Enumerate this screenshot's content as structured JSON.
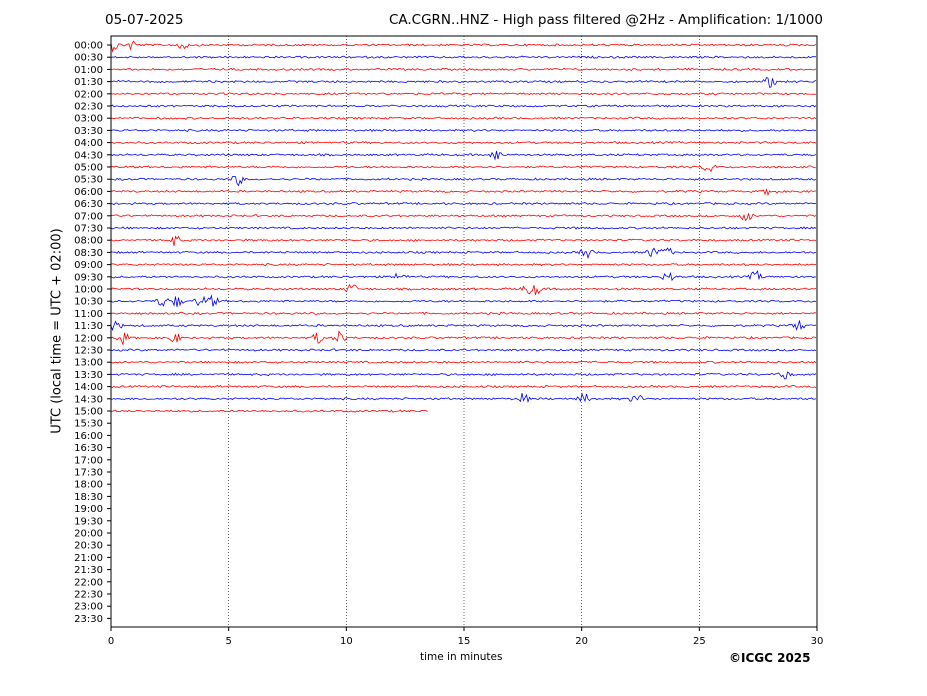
{
  "header": {
    "date": "05-07-2025",
    "title": "CA.CGRN..HNZ - High pass filtered @2Hz - Amplification: 1/1000"
  },
  "footer": {
    "copyright": "©ICGC 2025"
  },
  "chart_data": {
    "type": "line",
    "title": "CA.CGRN..HNZ - High pass filtered @2Hz - Amplification: 1/1000",
    "xlabel": "time in minutes",
    "ylabel": "UTC (local time = UTC + 02:00)",
    "xlim": [
      0,
      30
    ],
    "xticks": [
      0,
      5,
      10,
      15,
      20,
      25,
      30
    ],
    "grid_x": true,
    "row_labels": [
      "00:00",
      "00:30",
      "01:00",
      "01:30",
      "02:00",
      "02:30",
      "03:00",
      "03:30",
      "04:00",
      "04:30",
      "05:00",
      "05:30",
      "06:00",
      "06:30",
      "07:00",
      "07:30",
      "08:00",
      "08:30",
      "09:00",
      "09:30",
      "10:00",
      "10:30",
      "11:00",
      "11:30",
      "12:00",
      "12:30",
      "13:00",
      "13:30",
      "14:00",
      "14:30",
      "15:00",
      "15:30",
      "16:00",
      "16:30",
      "17:00",
      "17:30",
      "18:00",
      "18:30",
      "19:00",
      "19:30",
      "20:00",
      "20:30",
      "21:00",
      "21:30",
      "22:00",
      "22:30",
      "23:00",
      "23:30"
    ],
    "colors": {
      "even_rows": "#ff0000",
      "odd_rows": "#0000ff"
    },
    "last_row_end_minutes": 13.5,
    "trace_rows_recorded": 31,
    "events": [
      {
        "row": "00:00",
        "minute": 0.1
      },
      {
        "row": "00:00",
        "minute": 0.9
      },
      {
        "row": "00:00",
        "minute": 3.0
      },
      {
        "row": "01:30",
        "minute": 28.0
      },
      {
        "row": "04:30",
        "minute": 16.4
      },
      {
        "row": "05:00",
        "minute": 25.4
      },
      {
        "row": "05:30",
        "minute": 5.4
      },
      {
        "row": "06:00",
        "minute": 28.0
      },
      {
        "row": "07:00",
        "minute": 27.0
      },
      {
        "row": "08:00",
        "minute": 2.7
      },
      {
        "row": "08:30",
        "minute": 20.2
      },
      {
        "row": "08:30",
        "minute": 23.0
      },
      {
        "row": "08:30",
        "minute": 23.6
      },
      {
        "row": "09:30",
        "minute": 12.3
      },
      {
        "row": "09:30",
        "minute": 23.7
      },
      {
        "row": "09:30",
        "minute": 27.4
      },
      {
        "row": "10:00",
        "minute": 10.2
      },
      {
        "row": "10:00",
        "minute": 17.7
      },
      {
        "row": "10:00",
        "minute": 18.1
      },
      {
        "row": "10:30",
        "minute": 2.2
      },
      {
        "row": "10:30",
        "minute": 2.8
      },
      {
        "row": "10:30",
        "minute": 3.8
      },
      {
        "row": "10:30",
        "minute": 4.3
      },
      {
        "row": "11:30",
        "minute": 0.2
      },
      {
        "row": "11:30",
        "minute": 29.2
      },
      {
        "row": "12:00",
        "minute": 0.5
      },
      {
        "row": "12:00",
        "minute": 2.7
      },
      {
        "row": "12:00",
        "minute": 8.8
      },
      {
        "row": "12:00",
        "minute": 9.7
      },
      {
        "row": "13:30",
        "minute": 28.6
      },
      {
        "row": "14:30",
        "minute": 17.5
      },
      {
        "row": "14:30",
        "minute": 20.1
      },
      {
        "row": "14:30",
        "minute": 22.3
      }
    ]
  }
}
